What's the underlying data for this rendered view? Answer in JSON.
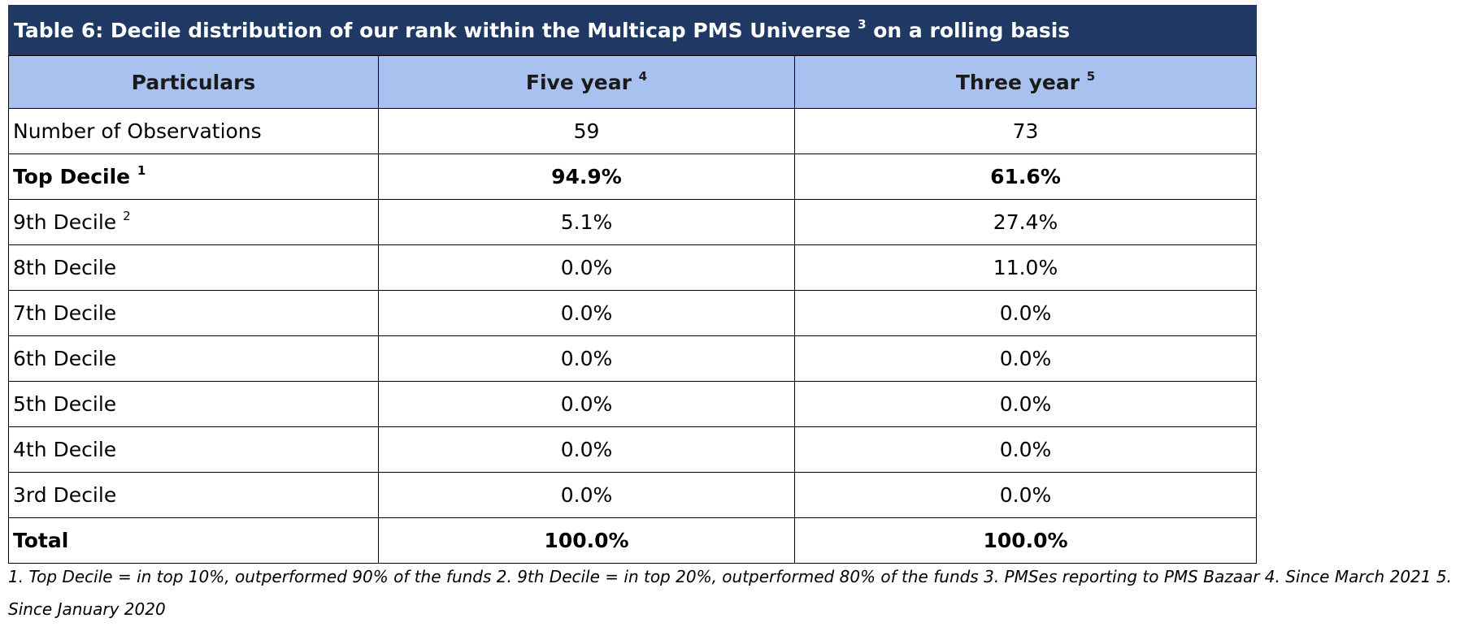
{
  "table": {
    "title": "Table 6: Decile distribution of our rank within the Multicap PMS Universe",
    "title_sup": "3",
    "title_suffix": "on a rolling basis",
    "headers": [
      {
        "label": "Particulars",
        "sup": ""
      },
      {
        "label": "Five year",
        "sup": "4"
      },
      {
        "label": "Three year",
        "sup": "5"
      }
    ],
    "rows": [
      {
        "label": "Number of Observations",
        "sup": "",
        "five_year": "59",
        "three_year": "73",
        "bold": false
      },
      {
        "label": "Top Decile",
        "sup": "1",
        "five_year": "94.9%",
        "three_year": "61.6%",
        "bold": true
      },
      {
        "label": "9th Decile",
        "sup": "2",
        "five_year": "5.1%",
        "three_year": "27.4%",
        "bold": false
      },
      {
        "label": "8th Decile",
        "sup": "",
        "five_year": "0.0%",
        "three_year": "11.0%",
        "bold": false
      },
      {
        "label": "7th Decile",
        "sup": "",
        "five_year": "0.0%",
        "three_year": "0.0%",
        "bold": false
      },
      {
        "label": "6th Decile",
        "sup": "",
        "five_year": "0.0%",
        "three_year": "0.0%",
        "bold": false
      },
      {
        "label": "5th Decile",
        "sup": "",
        "five_year": "0.0%",
        "three_year": "0.0%",
        "bold": false
      },
      {
        "label": "4th Decile",
        "sup": "",
        "five_year": "0.0%",
        "three_year": "0.0%",
        "bold": false
      },
      {
        "label": "3rd Decile",
        "sup": "",
        "five_year": "0.0%",
        "three_year": "0.0%",
        "bold": false
      },
      {
        "label": "Total",
        "sup": "",
        "five_year": "100.0%",
        "three_year": "100.0%",
        "bold": true
      }
    ]
  },
  "footnote": "1. Top Decile = in top 10%, outperformed 90% of the funds 2. 9th Decile = in top 20%, outperformed 80% of the funds 3. PMSes reporting to PMS Bazaar 4. Since March 2021 5. Since January 2020",
  "colors": {
    "title_bg": "#1f3864",
    "header_bg": "#a9c1ee",
    "border": "#000000"
  }
}
